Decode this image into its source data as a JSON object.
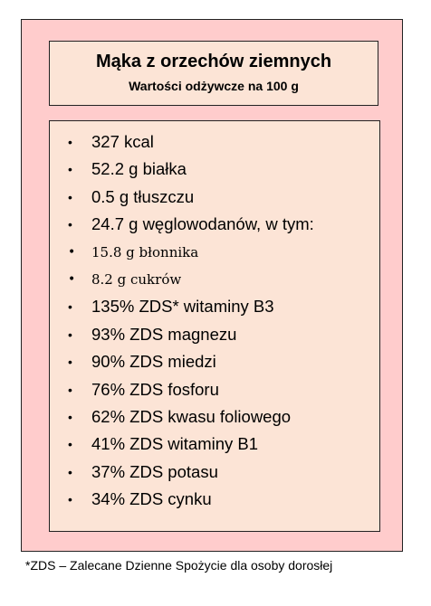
{
  "header": {
    "title": "Mąka z orzechów ziemnych",
    "subtitle": "Wartości odżywcze na 100 g"
  },
  "nutrients": [
    {
      "text": "327 kcal",
      "small": false
    },
    {
      "text": "52.2 g białka",
      "small": false
    },
    {
      "text": "0.5 g tłuszczu",
      "small": false
    },
    {
      "text": "24.7 g węglowodanów, w tym:",
      "small": false
    },
    {
      "text": "15.8 g błonnika",
      "small": true
    },
    {
      "text": "8.2 g cukrów",
      "small": true
    },
    {
      "text": "135% ZDS* witaminy B3",
      "small": false
    },
    {
      "text": "93% ZDS magnezu",
      "small": false
    },
    {
      "text": "90% ZDS miedzi",
      "small": false
    },
    {
      "text": "76% ZDS fosforu",
      "small": false
    },
    {
      "text": "62% ZDS kwasu foliowego",
      "small": false
    },
    {
      "text": "41% ZDS witaminy B1",
      "small": false
    },
    {
      "text": "37% ZDS potasu",
      "small": false
    },
    {
      "text": "34% ZDS cynku",
      "small": false
    }
  ],
  "bullet_glyph": "•",
  "footnote": "*ZDS – Zalecane Dzienne Spożycie dla osoby dorosłej",
  "colors": {
    "card_background": "#ffcccc",
    "panel_background": "#fce4d6",
    "border": "#222222"
  }
}
